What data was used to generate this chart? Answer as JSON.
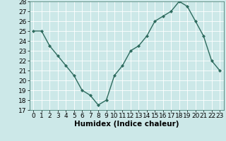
{
  "x": [
    0,
    1,
    2,
    3,
    4,
    5,
    6,
    7,
    8,
    9,
    10,
    11,
    12,
    13,
    14,
    15,
    16,
    17,
    18,
    19,
    20,
    21,
    22,
    23
  ],
  "y": [
    25,
    25,
    23.5,
    22.5,
    21.5,
    20.5,
    19,
    18.5,
    17.5,
    18,
    20.5,
    21.5,
    23,
    23.5,
    24.5,
    26,
    26.5,
    27,
    28,
    27.5,
    26,
    24.5,
    22,
    21
  ],
  "xlabel": "Humidex (Indice chaleur)",
  "ylim": [
    17,
    28
  ],
  "yticks": [
    17,
    18,
    19,
    20,
    21,
    22,
    23,
    24,
    25,
    26,
    27,
    28
  ],
  "xticks": [
    0,
    1,
    2,
    3,
    4,
    5,
    6,
    7,
    8,
    9,
    10,
    11,
    12,
    13,
    14,
    15,
    16,
    17,
    18,
    19,
    20,
    21,
    22,
    23
  ],
  "line_color": "#2e6b5e",
  "marker_color": "#2e6b5e",
  "bg_color": "#cce8e8",
  "grid_color": "#ffffff",
  "xlabel_fontsize": 7.5,
  "tick_fontsize": 6.5
}
